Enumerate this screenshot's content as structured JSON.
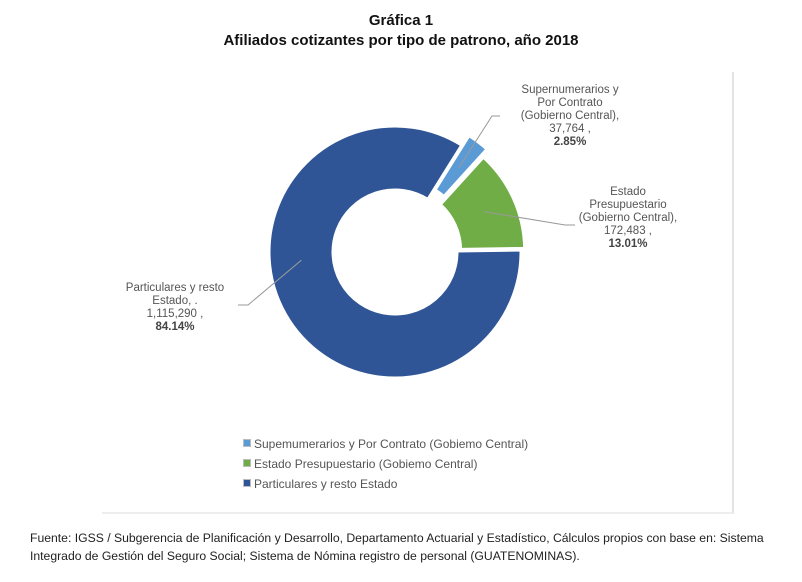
{
  "chart_data": {
    "type": "pie",
    "title": "Gráfica 1",
    "subtitle": "Afiliados cotizantes por tipo de patrono, año 2018",
    "slices": [
      {
        "name": "Supernumerarios y Por Contrato (Gobierno Central)",
        "label_lines": [
          "Supernumerarios y",
          "Por Contrato",
          "(Gobierno Central),",
          "37,764 ,"
        ],
        "value": 37764,
        "pct": "2.85%",
        "color": "#5b9bd5",
        "legend": "Supemumerarios y Por Contrato (Gobiemo Central)"
      },
      {
        "name": "Estado Presupuestario (Gobierno Central)",
        "label_lines": [
          "Estado",
          "Presupuestario",
          "(Gobierno Central),",
          "172,483 ,"
        ],
        "value": 172483,
        "pct": "13.01%",
        "color": "#70ad47",
        "legend": "Estado Presupuestario (Gobiemo Central)"
      },
      {
        "name": "Particulares y resto Estado",
        "label_lines": [
          "Particulares y resto",
          "Estado, .",
          "1,115,290 ,"
        ],
        "value": 1115290,
        "pct": "84.14%",
        "color": "#2f5597",
        "legend": "Particulares y resto Estado"
      }
    ],
    "legend_position": "bottom-left"
  },
  "source": "Fuente: IGSS / Subgerencia de Planificación y Desarrollo, Departamento Actuarial y Estadístico, Cálculos propios  con base en: Sistema Integrado de Gestión del Seguro Social; Sistema de Nómina registro de personal (GUATENOMINAS)."
}
